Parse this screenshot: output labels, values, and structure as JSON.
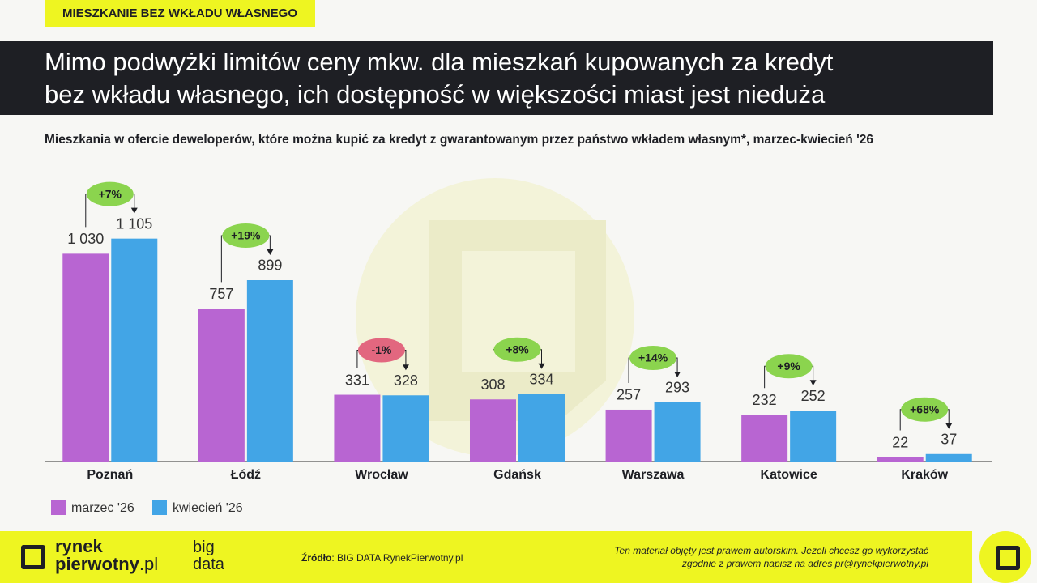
{
  "chart_data": {
    "type": "bar",
    "tag": "MIESZKANIE BEZ WKŁADU WŁASNEGO",
    "title_lines": [
      "Mimo podwyżki limitów ceny mkw. dla mieszkań kupowanych za kredyt",
      "bez wkładu własnego, ich dostępność w większości miast jest nieduża"
    ],
    "subtitle": "Mieszkania w ofercie deweloperów, które można kupić za kredyt z gwarantowanym przez państwo wkładem własnym*, marzec-kwiecień '26",
    "categories": [
      "Poznań",
      "Łódź",
      "Wrocław",
      "Gdańsk",
      "Warszawa",
      "Katowice",
      "Kraków"
    ],
    "series": [
      {
        "name": "marzec '26",
        "color": "#b865d2",
        "values": [
          1030,
          757,
          331,
          308,
          257,
          232,
          22
        ],
        "value_labels": [
          "1 030",
          "757",
          "331",
          "308",
          "257",
          "232",
          "22"
        ]
      },
      {
        "name": "kwiecień '26",
        "color": "#42a5e6",
        "values": [
          1105,
          899,
          328,
          334,
          293,
          252,
          37
        ],
        "value_labels": [
          "1 105",
          "899",
          "328",
          "334",
          "293",
          "252",
          "37"
        ]
      }
    ],
    "changes": [
      "+7%",
      "+19%",
      "-1%",
      "+8%",
      "+14%",
      "+9%",
      "+68%"
    ],
    "change_colors": {
      "up": "#8bd44e",
      "down": "#e2677f"
    },
    "ylim": [
      0,
      1200
    ]
  },
  "footer": {
    "logo_top": "rynek",
    "logo_bottom": "pierwotny",
    "logo_suffix": ".pl",
    "big": "big",
    "data": "data",
    "source_label": "Źródło",
    "source": ": BIG DATA RynekPierwotny.pl",
    "disclaimer_1": "Ten materiał objęty jest prawem autorskim. Jeżeli chcesz go wykorzystać",
    "disclaimer_2": "zgodnie z prawem napisz na adres ",
    "email": "pr@rynekpierwotny.pl"
  }
}
